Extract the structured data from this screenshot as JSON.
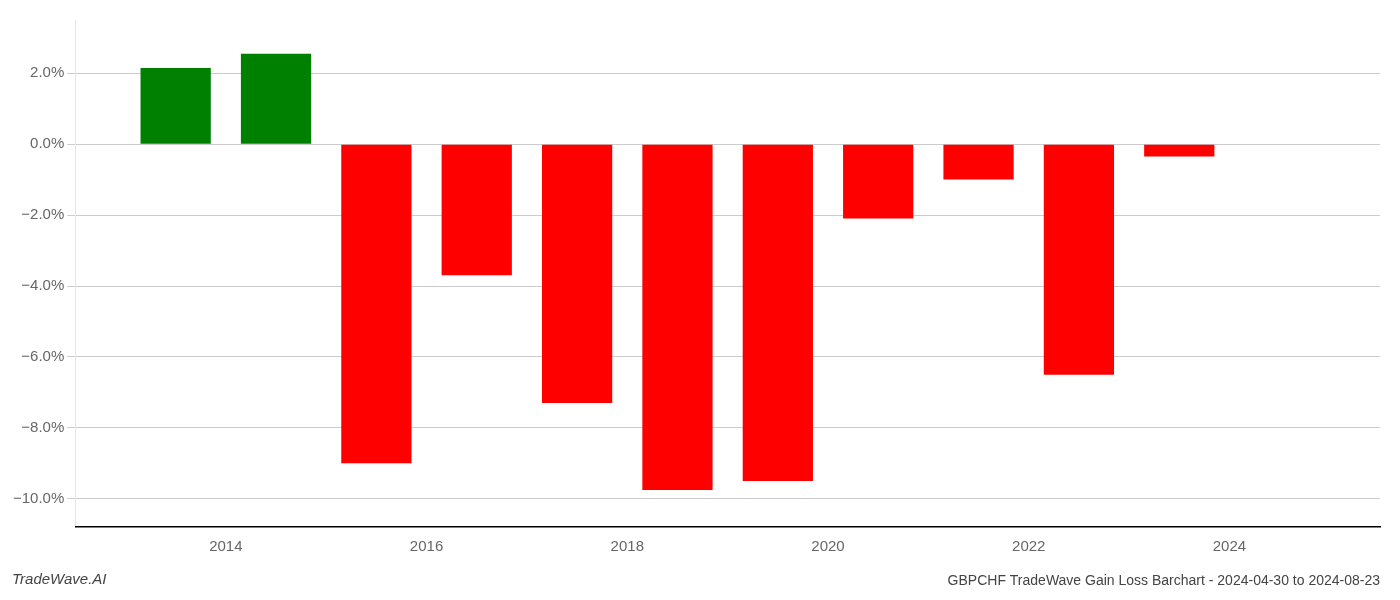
{
  "chart_data": {
    "type": "bar",
    "title": "GBPCHF TradeWave Gain Loss Barchart - 2024-04-30 to 2024-08-23",
    "annotations": [
      "TradeWave.AI"
    ],
    "x": [
      2013.5,
      2014.5,
      2015.5,
      2016.5,
      2017.5,
      2018.5,
      2019.5,
      2020.5,
      2021.5,
      2022.5,
      2023.5
    ],
    "values": [
      2.15,
      2.55,
      -9.0,
      -3.7,
      -7.3,
      -9.75,
      -9.5,
      -2.1,
      -1.0,
      -6.5,
      -0.35
    ],
    "colors": [
      "#008000",
      "#008000",
      "#ff0000",
      "#ff0000",
      "#ff0000",
      "#ff0000",
      "#ff0000",
      "#ff0000",
      "#ff0000",
      "#ff0000",
      "#ff0000"
    ],
    "xlim": [
      2012.5,
      2025.5
    ],
    "xticks": [
      2014,
      2016,
      2018,
      2020,
      2022,
      2024
    ],
    "ylim": [
      -10.8,
      3.5
    ],
    "yticks": [
      {
        "value": 2.0,
        "label": "2.0%"
      },
      {
        "value": 0.0,
        "label": "0.0%"
      },
      {
        "value": -2.0,
        "label": "−2.0%"
      },
      {
        "value": -4.0,
        "label": "−4.0%"
      },
      {
        "value": -6.0,
        "label": "−6.0%"
      },
      {
        "value": -8.0,
        "label": "−8.0%"
      },
      {
        "value": -10.0,
        "label": "−10.0%"
      }
    ],
    "grid": true
  }
}
